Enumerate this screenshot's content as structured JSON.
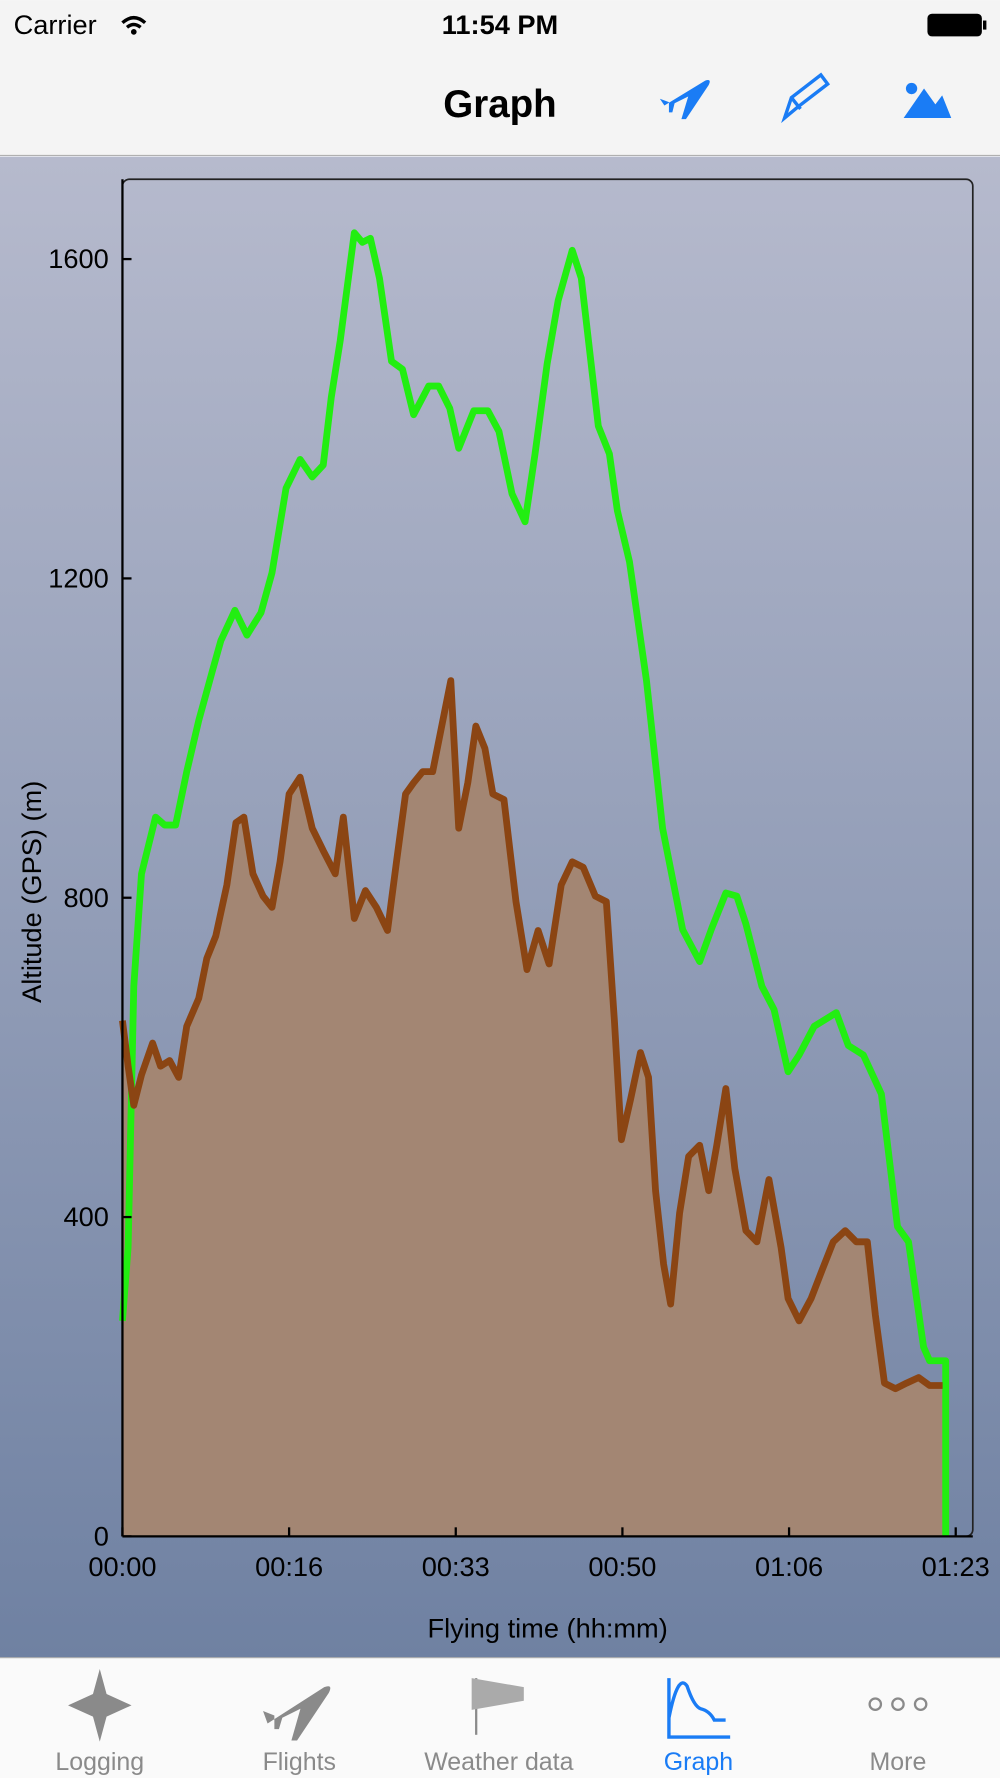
{
  "status_bar": {
    "carrier": "Carrier",
    "time": "11:54 PM"
  },
  "nav_bar": {
    "title": "Graph"
  },
  "chart_data": {
    "type": "line",
    "ylabel": "Altitude (GPS) (m)",
    "xlabel": "Flying time (hh:mm)",
    "xlim": [
      0,
      84.7
    ],
    "ylim": [
      0,
      1700
    ],
    "xticks": [
      {
        "value": 0,
        "label": "00:00"
      },
      {
        "value": 16.6,
        "label": "00:16"
      },
      {
        "value": 33.2,
        "label": "00:33"
      },
      {
        "value": 49.8,
        "label": "00:50"
      },
      {
        "value": 66.4,
        "label": "01:06"
      },
      {
        "value": 83,
        "label": "01:23"
      }
    ],
    "yticks": [
      0,
      400,
      800,
      1200,
      1600
    ],
    "area_color": "#a38673",
    "series": [
      {
        "color": "#22ee11",
        "fill": false,
        "x": [
          0,
          0.56,
          1.13,
          1.9,
          3.3,
          4.2,
          5.3,
          6.4,
          7.6,
          9.0,
          9.8,
          11.2,
          12.4,
          13.8,
          14.9,
          16.3,
          17.7,
          18.9,
          20.0,
          20.8,
          21.7,
          23.1,
          23.9,
          24.7,
          25.6,
          26.8,
          27.9,
          29.0,
          30.5,
          31.5,
          32.6,
          33.5,
          35.0,
          36.4,
          37.5,
          38.8,
          40.1,
          41.1,
          42.3,
          43.4,
          44.8,
          45.7,
          47.4,
          48.5,
          49.3,
          50.5,
          52.2,
          53.8,
          55.8,
          57.5,
          58.7,
          60.1,
          61.2,
          62.1,
          63.7,
          64.9,
          66.3,
          67.4,
          68.9,
          71.1,
          72.3,
          73.8,
          75.6,
          77.2,
          78.3,
          79.8,
          80.4,
          82.0,
          82.0
        ],
        "values": [
          270,
          362,
          689,
          830,
          901,
          891,
          891,
          958,
          1022,
          1086,
          1122,
          1160,
          1129,
          1157,
          1207,
          1313,
          1349,
          1327,
          1342,
          1427,
          1498,
          1633,
          1621,
          1626,
          1576,
          1472,
          1462,
          1405,
          1441,
          1441,
          1413,
          1363,
          1410,
          1410,
          1384,
          1306,
          1271,
          1356,
          1469,
          1548,
          1611,
          1576,
          1391,
          1356,
          1285,
          1221,
          1072,
          887,
          760,
          720,
          762,
          806,
          802,
          767,
          689,
          660,
          582,
          603,
          639,
          656,
          615,
          603,
          554,
          388,
          369,
          237,
          220,
          220,
          0
        ]
      },
      {
        "color": "#8b4513",
        "fill": true,
        "x": [
          0,
          0.56,
          1.13,
          1.9,
          3.0,
          3.8,
          4.7,
          5.6,
          6.4,
          7.6,
          8.4,
          9.3,
          10.4,
          11.3,
          12.1,
          13.0,
          14.0,
          14.9,
          15.7,
          16.6,
          17.7,
          18.9,
          20.0,
          21.2,
          22.0,
          23.1,
          24.2,
          25.3,
          26.4,
          27.3,
          28.2,
          29.0,
          29.9,
          30.9,
          31.8,
          32.7,
          33.5,
          34.4,
          35.2,
          36.1,
          36.9,
          38.0,
          39.2,
          40.3,
          41.4,
          42.5,
          43.7,
          44.8,
          45.9,
          47.1,
          48.2,
          49.0,
          49.7,
          50.6,
          51.6,
          52.4,
          53.1,
          53.9,
          54.6,
          55.5,
          56.4,
          57.5,
          58.4,
          59.2,
          60.1,
          61.0,
          62.1,
          63.2,
          64.4,
          65.6,
          66.3,
          67.4,
          68.6,
          69.7,
          70.8,
          72.0,
          73.1,
          74.2,
          75.0,
          75.9,
          77.0,
          78.1,
          79.3,
          80.4,
          81.7
        ],
        "values": [
          646,
          589,
          540,
          578,
          618,
          589,
          596,
          575,
          639,
          674,
          724,
          752,
          816,
          894,
          901,
          830,
          802,
          788,
          845,
          930,
          951,
          887,
          859,
          830,
          901,
          774,
          809,
          788,
          759,
          845,
          930,
          944,
          958,
          958,
          1015,
          1072,
          887,
          944,
          1015,
          987,
          930,
          923,
          795,
          710,
          759,
          717,
          816,
          845,
          838,
          802,
          795,
          646,
          497,
          547,
          606,
          575,
          433,
          341,
          291,
          405,
          476,
          490,
          433,
          490,
          561,
          461,
          383,
          369,
          447,
          362,
          298,
          270,
          298,
          334,
          369,
          383,
          369,
          369,
          277,
          192,
          185,
          192,
          199,
          189,
          189
        ]
      }
    ]
  },
  "tab_bar": {
    "items": [
      "Logging",
      "Flights",
      "Weather data",
      "Graph",
      "More"
    ],
    "selected": 3
  }
}
